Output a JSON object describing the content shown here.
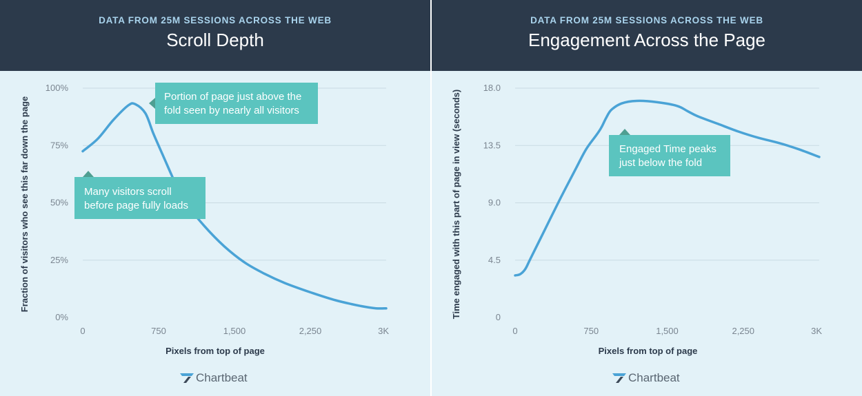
{
  "header": "Data from 25M sessions across the web",
  "brand": {
    "name": "Chartbeat",
    "icon": "chartbeat-logo-icon"
  },
  "colors": {
    "header_bg": "#2c3a4b",
    "panel_bg": "#e3f2f8",
    "line": "#4aa3d6",
    "callout": "#5bc4bf",
    "kicker": "#a9d3ec"
  },
  "chart_data": [
    {
      "type": "line",
      "kicker": "Data from 25M sessions across the web",
      "title": "Scroll Depth",
      "xlabel": "Pixels from top of page",
      "ylabel": "Fraction of visitors who see this far down the page",
      "xlim": [
        0,
        3000
      ],
      "ylim": [
        0,
        100
      ],
      "x_ticks": [
        0,
        750,
        1500,
        2250,
        3000
      ],
      "x_tick_labels": [
        "0",
        "750",
        "1,500",
        "2,250",
        "3K"
      ],
      "y_ticks": [
        0,
        25,
        50,
        75,
        100
      ],
      "y_tick_labels": [
        "0%",
        "25%",
        "50%",
        "75%",
        "100%"
      ],
      "grid": true,
      "series": [
        {
          "x": [
            0,
            150,
            300,
            450,
            520,
            620,
            700,
            800,
            900,
            1000,
            1200,
            1400,
            1600,
            1800,
            2000,
            2250,
            2500,
            2750,
            2900,
            3000
          ],
          "values": [
            72.5,
            78,
            86,
            92.5,
            93,
            89,
            80,
            70,
            60,
            51,
            40,
            31,
            24,
            19,
            15,
            11,
            7.5,
            5,
            4,
            4
          ]
        }
      ],
      "annotations": [
        {
          "text_lines": [
            "Portion of page just above the",
            "fold seen by nearly all visitors"
          ]
        },
        {
          "text_lines": [
            "Many visitors scroll",
            "before page fully loads"
          ]
        }
      ]
    },
    {
      "type": "line",
      "kicker": "Data from 25M sessions across the web",
      "title": "Engagement Across the Page",
      "xlabel": "Pixels from top of page",
      "ylabel": "Time engaged with this part of page in view (seconds)",
      "xlim": [
        0,
        3000
      ],
      "ylim": [
        0,
        18
      ],
      "x_ticks": [
        0,
        750,
        1500,
        2250,
        3000
      ],
      "x_tick_labels": [
        "0",
        "750",
        "1,500",
        "2,250",
        "3K"
      ],
      "y_ticks": [
        0,
        4.5,
        9,
        13.5,
        18
      ],
      "y_tick_labels": [
        "0",
        "4.5",
        "9.0",
        "13.5",
        "18.0"
      ],
      "grid": true,
      "series": [
        {
          "x": [
            0,
            50,
            100,
            150,
            300,
            450,
            600,
            700,
            800,
            850,
            900,
            950,
            1050,
            1200,
            1400,
            1600,
            1700,
            1800,
            2000,
            2200,
            2400,
            2600,
            2800,
            3000
          ],
          "values": [
            3.3,
            3.4,
            3.8,
            4.6,
            7,
            9.4,
            11.7,
            13.2,
            14.3,
            14.9,
            15.7,
            16.3,
            16.8,
            17.0,
            16.9,
            16.6,
            16.2,
            15.8,
            15.2,
            14.6,
            14.1,
            13.7,
            13.2,
            12.6
          ]
        }
      ],
      "annotations": [
        {
          "text_lines": [
            "Engaged Time peaks",
            "just below the fold"
          ]
        }
      ]
    }
  ]
}
